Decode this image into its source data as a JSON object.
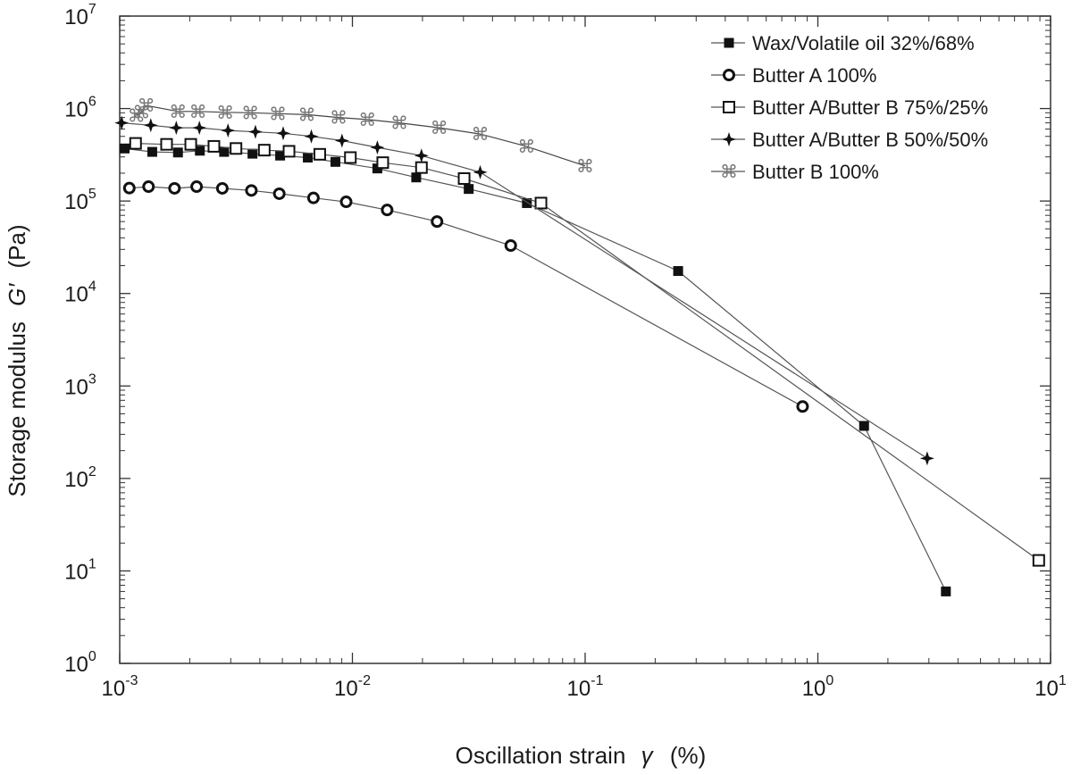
{
  "chart_data": {
    "type": "scatter",
    "title": "",
    "xlabel": "Oscillation strain",
    "xlabel_symbol": "γ",
    "xlabel_unit": "(%)",
    "ylabel": "Storage modulus",
    "ylabel_symbol": "G′",
    "ylabel_unit": "(Pa)",
    "x_scale": "log",
    "y_scale": "log",
    "xlim": [
      0.001,
      10
    ],
    "ylim": [
      1,
      10000000
    ],
    "x_ticks": [
      {
        "base": "10",
        "exp": "-3",
        "value": 0.001
      },
      {
        "base": "10",
        "exp": "-2",
        "value": 0.01
      },
      {
        "base": "10",
        "exp": "-1",
        "value": 0.1
      },
      {
        "base": "10",
        "exp": "0",
        "value": 1
      },
      {
        "base": "10",
        "exp": "1",
        "value": 10
      }
    ],
    "y_ticks": [
      {
        "base": "10",
        "exp": "0",
        "value": 1
      },
      {
        "base": "10",
        "exp": "1",
        "value": 10
      },
      {
        "base": "10",
        "exp": "2",
        "value": 100
      },
      {
        "base": "10",
        "exp": "3",
        "value": 1000
      },
      {
        "base": "10",
        "exp": "4",
        "value": 10000
      },
      {
        "base": "10",
        "exp": "5",
        "value": 100000
      },
      {
        "base": "10",
        "exp": "6",
        "value": 1000000
      },
      {
        "base": "10",
        "exp": "7",
        "value": 10000000
      }
    ],
    "grid": false,
    "legend_position": "top-right",
    "series": [
      {
        "name": "Wax/Volatile oil 32%/68%",
        "marker": "filled-square",
        "color": "#111111",
        "x": [
          0.00105,
          0.00138,
          0.00178,
          0.00221,
          0.00281,
          0.00372,
          0.00489,
          0.00643,
          0.00845,
          0.0128,
          0.0188,
          0.0316,
          0.0562,
          0.251,
          1.58,
          3.55
        ],
        "y": [
          370000,
          340000,
          335000,
          350000,
          340000,
          325000,
          310000,
          295000,
          265000,
          225000,
          180000,
          135000,
          95000,
          17500,
          370,
          6
        ]
      },
      {
        "name": "Butter A 100%",
        "marker": "open-circle",
        "color": "#111111",
        "x": [
          0.0011,
          0.00133,
          0.00172,
          0.00214,
          0.00276,
          0.00368,
          0.00485,
          0.0068,
          0.0094,
          0.0141,
          0.0231,
          0.0479,
          0.86
        ],
        "y": [
          138000,
          143000,
          137000,
          143000,
          137000,
          130000,
          120000,
          108000,
          98000,
          80000,
          60000,
          33000,
          600
        ]
      },
      {
        "name": "Butter A/Butter B 75%/25%",
        "marker": "open-square",
        "color": "#111111",
        "x": [
          0.00117,
          0.00159,
          0.00202,
          0.00254,
          0.00316,
          0.00418,
          0.00534,
          0.00724,
          0.0098,
          0.0135,
          0.0198,
          0.0302,
          0.0646,
          8.9
        ],
        "y": [
          420000,
          410000,
          410000,
          390000,
          370000,
          355000,
          345000,
          320000,
          295000,
          260000,
          230000,
          175000,
          95000,
          13
        ]
      },
      {
        "name": "Butter A/Butter B 50%/50%",
        "marker": "star",
        "color": "#111111",
        "x": [
          0.00102,
          0.00136,
          0.00175,
          0.0022,
          0.00292,
          0.00383,
          0.00504,
          0.00666,
          0.00902,
          0.0128,
          0.0198,
          0.0354,
          2.95
        ],
        "y": [
          700000,
          660000,
          620000,
          620000,
          580000,
          560000,
          540000,
          500000,
          450000,
          380000,
          310000,
          205000,
          165
        ]
      },
      {
        "name": "Butter B 100%",
        "marker": "command-symbol",
        "color": "#777777",
        "x": [
          0.00118,
          0.00124,
          0.0013,
          0.00178,
          0.00217,
          0.00284,
          0.00364,
          0.00478,
          0.00637,
          0.00872,
          0.0116,
          0.0159,
          0.0236,
          0.0354,
          0.056,
          0.1
        ],
        "y": [
          840000,
          920000,
          1080000,
          930000,
          930000,
          910000,
          900000,
          880000,
          860000,
          800000,
          760000,
          700000,
          620000,
          530000,
          390000,
          240000
        ]
      }
    ]
  }
}
